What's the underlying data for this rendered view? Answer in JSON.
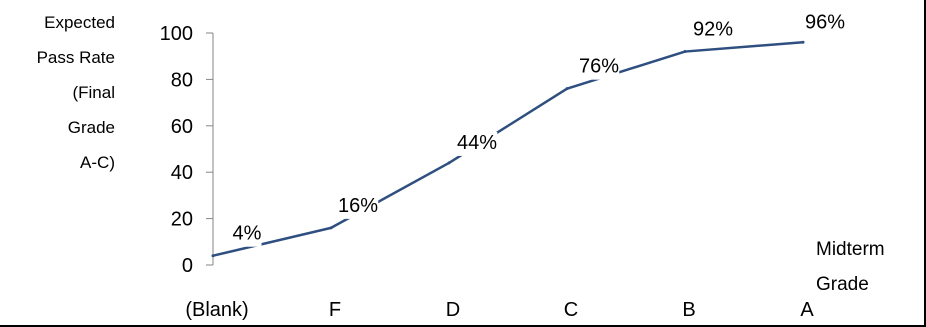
{
  "chart_data": {
    "type": "line",
    "categories": [
      "(Blank)",
      "F",
      "D",
      "C",
      "B",
      "A"
    ],
    "series": [
      {
        "values": [
          4,
          16,
          44,
          76,
          92,
          96
        ]
      }
    ],
    "data_labels": [
      "4%",
      "16%",
      "44%",
      "76%",
      "92%",
      "96%"
    ],
    "ylabel_lines": [
      "Expected",
      "Pass Rate",
      "(Final",
      "Grade",
      "A-C)"
    ],
    "xlabel_lines": [
      "Midterm",
      "Grade"
    ],
    "yticks": [
      0,
      20,
      40,
      60,
      80,
      100
    ],
    "ylim": [
      0,
      100
    ],
    "grid": false,
    "legend": "none",
    "line_color": "#2E4F7F"
  }
}
